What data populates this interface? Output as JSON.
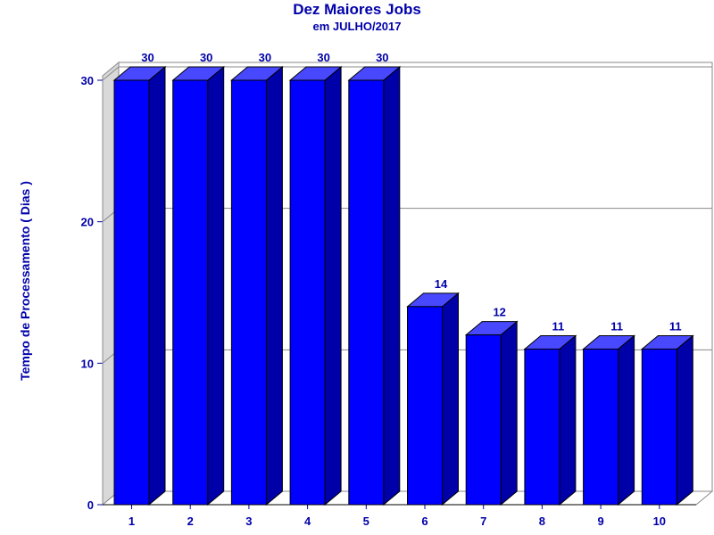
{
  "colors": {
    "bar_front": "#0000ff",
    "bar_side": "#0000a8",
    "bar_top": "#4848ff",
    "text": "#0000aa",
    "back_wall": "#ffffff",
    "side_wall": "#d9d9d9",
    "grid": "#8a8a8a"
  },
  "chart_data": {
    "type": "bar",
    "title": "Dez Maiores Jobs",
    "subtitle": "em JULHO/2017",
    "xlabel": "",
    "ylabel": "Tempo de Processamento ( Dias )",
    "categories": [
      "1",
      "2",
      "3",
      "4",
      "5",
      "6",
      "7",
      "8",
      "9",
      "10"
    ],
    "values": [
      30,
      30,
      30,
      30,
      30,
      14,
      12,
      11,
      11,
      11
    ],
    "data_labels": [
      "30",
      "30",
      "30",
      "30",
      "30",
      "14",
      "12",
      "11",
      "11",
      "11"
    ],
    "yticks": [
      0,
      10,
      20,
      30
    ],
    "ylim": [
      0,
      30
    ],
    "grid": true,
    "style": "3d"
  }
}
